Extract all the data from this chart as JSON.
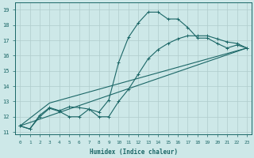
{
  "background_color": "#cde8e8",
  "grid_color": "#b0cccc",
  "line_color": "#1a6666",
  "xlabel": "Humidex (Indice chaleur)",
  "xlim": [
    -0.5,
    23.5
  ],
  "ylim": [
    10.85,
    19.5
  ],
  "xticks": [
    0,
    1,
    2,
    3,
    4,
    5,
    6,
    7,
    8,
    9,
    10,
    11,
    12,
    13,
    14,
    15,
    16,
    17,
    18,
    19,
    20,
    21,
    22,
    23
  ],
  "yticks": [
    11,
    12,
    13,
    14,
    15,
    16,
    17,
    18,
    19
  ],
  "curve1_x": [
    0,
    1,
    2,
    3,
    4,
    5,
    6,
    7,
    8,
    9,
    10,
    11,
    12,
    13,
    14,
    15,
    16,
    17,
    18,
    19,
    20,
    21,
    22,
    23
  ],
  "curve1_y": [
    11.4,
    11.2,
    12.1,
    12.6,
    12.4,
    12.65,
    12.6,
    12.5,
    12.3,
    13.1,
    15.55,
    17.2,
    18.15,
    18.85,
    18.85,
    18.4,
    18.4,
    17.85,
    17.15,
    17.15,
    16.8,
    16.5,
    16.7,
    16.5
  ],
  "curve2_x": [
    0,
    1,
    2,
    3,
    4,
    5,
    6,
    7,
    8,
    9,
    10,
    11,
    12,
    13,
    14,
    15,
    16,
    17,
    18,
    19,
    20,
    21,
    22,
    23
  ],
  "curve2_y": [
    11.4,
    11.2,
    12.0,
    12.55,
    12.35,
    12.0,
    12.0,
    12.5,
    12.0,
    12.0,
    13.0,
    13.8,
    14.8,
    15.8,
    16.4,
    16.8,
    17.1,
    17.3,
    17.3,
    17.3,
    17.1,
    16.9,
    16.8,
    16.5
  ],
  "line3_x": [
    0,
    23
  ],
  "line3_y": [
    11.4,
    16.5
  ],
  "line4_x": [
    0,
    3,
    23
  ],
  "line4_y": [
    11.4,
    12.9,
    16.5
  ]
}
